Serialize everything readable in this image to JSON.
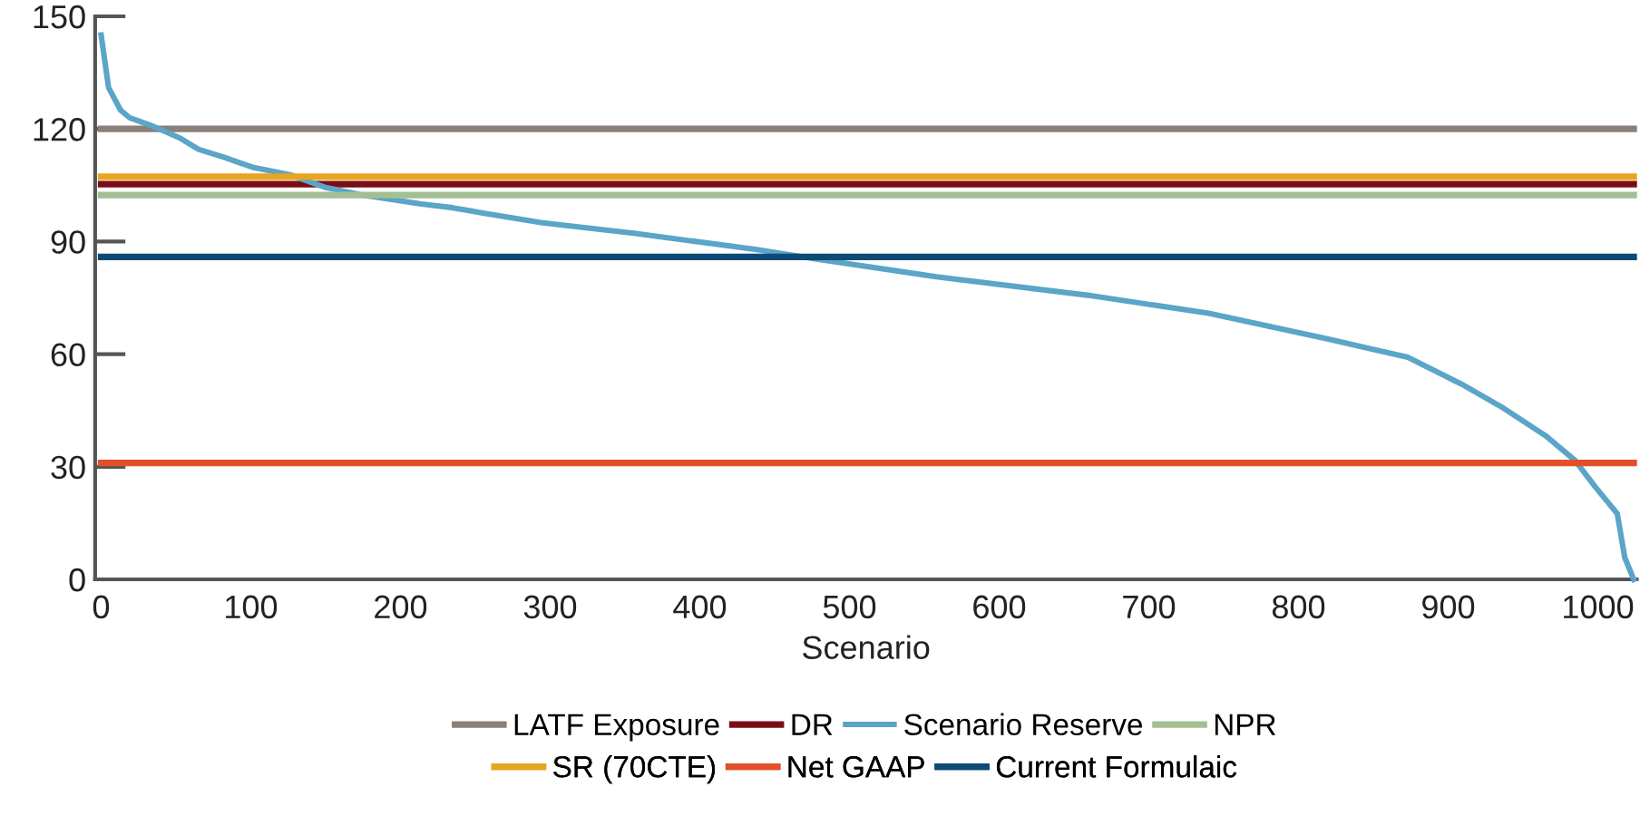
{
  "chart_data": {
    "type": "line",
    "xlabel": "Scenario",
    "xlim": [
      -4,
      1026
    ],
    "ylim": [
      0,
      150
    ],
    "xticks": [
      0,
      100,
      200,
      300,
      400,
      500,
      600,
      700,
      800,
      900,
      1000
    ],
    "yticks": [
      0,
      30,
      60,
      90,
      120,
      150
    ],
    "grid": false,
    "legend": "bottom",
    "marker": "none",
    "line_style": "solid",
    "series": [
      {
        "name": "LATF Exposure",
        "color": "#8a8079",
        "x": [
          0,
          1024
        ],
        "values": [
          120,
          120
        ]
      },
      {
        "name": "DR",
        "color": "#7a0c14",
        "x": [
          0,
          1024
        ],
        "values": [
          105.3,
          105.3
        ]
      },
      {
        "name": "Scenario Reserve",
        "color": "#5aa5c8",
        "x": [
          0,
          5,
          13,
          19,
          33,
          53,
          65,
          81,
          102,
          126,
          150,
          174,
          214,
          235,
          255,
          295,
          356,
          437,
          477,
          558,
          659,
          740,
          820,
          873,
          909,
          937,
          965,
          985,
          998,
          1013,
          1018,
          1024
        ],
        "values": [
          145,
          131,
          125,
          123,
          121,
          117.5,
          114.6,
          112.6,
          109.7,
          107.8,
          104.4,
          102.4,
          100,
          99,
          97.6,
          95,
          92.2,
          87.9,
          85.4,
          80.6,
          75.7,
          70.9,
          64,
          59.2,
          52,
          45.6,
          38.3,
          31.6,
          24.8,
          17.5,
          5.8,
          0
        ]
      },
      {
        "name": "NPR",
        "color": "#a3bf93",
        "x": [
          0,
          1024
        ],
        "values": [
          102.4,
          102.4
        ]
      },
      {
        "name": "SR (70CTE)",
        "color": "#e8a521",
        "x": [
          0,
          1024
        ],
        "values": [
          107.3,
          107.3
        ]
      },
      {
        "name": "Net GAAP",
        "color": "#e2502a",
        "x": [
          0,
          1024
        ],
        "values": [
          31,
          31
        ]
      },
      {
        "name": "Current Formulaic",
        "color": "#0d4a75",
        "x": [
          0,
          1024
        ],
        "values": [
          85.9,
          85.9
        ]
      }
    ]
  }
}
